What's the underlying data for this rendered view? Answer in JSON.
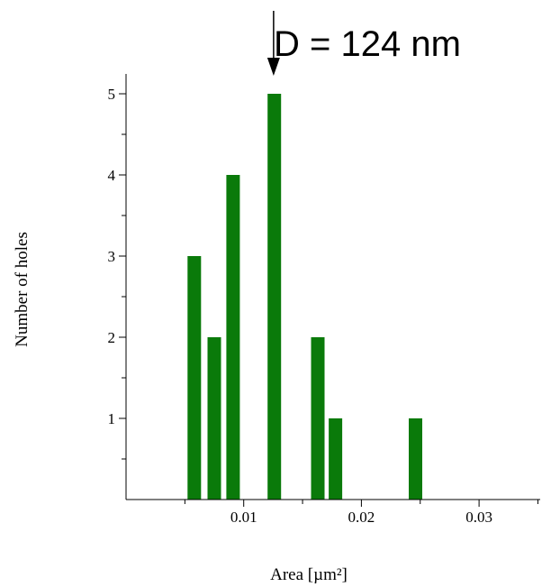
{
  "chart_data": {
    "type": "bar",
    "title": "",
    "annotation": "D = 124 nm",
    "annotation_x": 0.0125,
    "xlabel": "Area [µm²]",
    "ylabel": "Number of holes",
    "xlim": [
      0.0,
      0.035
    ],
    "ylim": [
      0,
      5
    ],
    "x_ticks": [
      0.01,
      0.02,
      0.03
    ],
    "x_tick_labels": [
      "0.01",
      "0.02",
      "0.03"
    ],
    "y_ticks": [
      1,
      2,
      3,
      4,
      5
    ],
    "y_tick_labels": [
      "1",
      "2",
      "3",
      "4",
      "5"
    ],
    "bar_width": 0.00115,
    "grid": false,
    "legend": "none",
    "bar_color": "#0a7a0a",
    "bars": [
      {
        "x": 0.0058,
        "value": 3
      },
      {
        "x": 0.0075,
        "value": 2
      },
      {
        "x": 0.0091,
        "value": 4
      },
      {
        "x": 0.0126,
        "value": 5
      },
      {
        "x": 0.0163,
        "value": 2
      },
      {
        "x": 0.0178,
        "value": 1
      },
      {
        "x": 0.0246,
        "value": 1
      }
    ]
  }
}
